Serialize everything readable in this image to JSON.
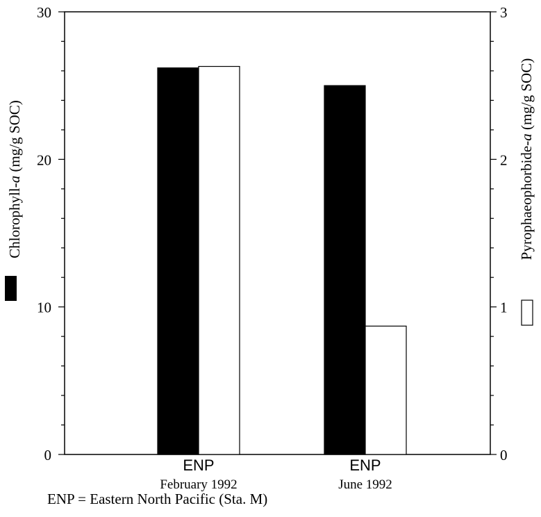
{
  "chart_data": {
    "type": "bar",
    "categories": [
      {
        "name": "ENP",
        "sublabel": "February 1992"
      },
      {
        "name": "ENP",
        "sublabel": "June 1992"
      }
    ],
    "series": [
      {
        "name": "Chlorophyll-a",
        "axis": "left",
        "fill": "#000000",
        "values": [
          26.2,
          25.0
        ]
      },
      {
        "name": "Pyrophaeophorbide-a",
        "axis": "right",
        "fill": "#ffffff",
        "values": [
          2.63,
          0.87
        ]
      }
    ],
    "left_axis": {
      "label_prefix": "Chlorophyll-",
      "label_italic": "a",
      "label_suffix": " (mg/g SOC)",
      "ylim": [
        0,
        30
      ],
      "ticks": [
        "0",
        "10",
        "20",
        "30"
      ]
    },
    "right_axis": {
      "label_prefix": "Pyrophaeophorbide-",
      "label_italic": "a",
      "label_suffix": " (mg/g SOC)",
      "ylim": [
        0,
        3
      ],
      "ticks": [
        "0",
        "1",
        "2",
        "3"
      ]
    },
    "grid": false,
    "legend": "axis-side swatches"
  },
  "footnote": "ENP = Eastern North Pacific (Sta. M)"
}
